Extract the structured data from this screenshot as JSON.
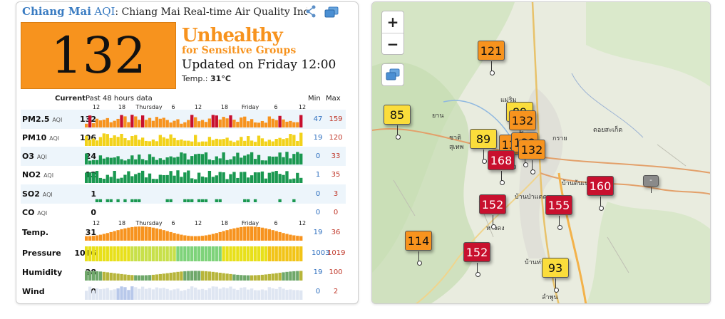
{
  "header": {
    "city": "Chiang Mai",
    "aqi_label": "AQI",
    "title_rest": ": Chiang Mai Real-time Air Quality Index (AQ"
  },
  "current": {
    "aqi": "132",
    "status_line1": "Unhealthy",
    "status_line2": "for Sensitive Groups",
    "updated": "Updated on Friday 12:00",
    "temp_label": "Temp.:",
    "temp_value": "31",
    "temp_unit": "°C"
  },
  "table": {
    "current_label": "Current",
    "history_label": "Past 48 hours data",
    "min_label": "Min",
    "max_label": "Max",
    "time_labels": [
      "12",
      "18",
      "Thursday",
      "6",
      "12",
      "18",
      "Friday",
      "6",
      "12"
    ],
    "rows": [
      {
        "name": "PM2.5",
        "unit": "AQI",
        "current": "132",
        "min": "47",
        "max": "159",
        "color": "#f7931e"
      },
      {
        "name": "PM10",
        "unit": "AQI",
        "current": "106",
        "min": "19",
        "max": "120",
        "color": "#f2d21a"
      },
      {
        "name": "O3",
        "unit": "AQI",
        "current": "24",
        "min": "0",
        "max": "33",
        "color": "#1a9850"
      },
      {
        "name": "NO2",
        "unit": "AQI",
        "current": "12",
        "min": "1",
        "max": "35",
        "color": "#1a9850"
      },
      {
        "name": "SO2",
        "unit": "AQI",
        "current": "1",
        "min": "0",
        "max": "3",
        "color": "#1a9850"
      },
      {
        "name": "CO",
        "unit": "AQI",
        "current": "0",
        "min": "0",
        "max": "0",
        "color": "#1a9850"
      },
      {
        "name": "Temp.",
        "unit": "",
        "current": "31",
        "min": "19",
        "max": "36",
        "color": "#f7931e"
      },
      {
        "name": "Pressure",
        "unit": "",
        "current": "1016",
        "min": "1003",
        "max": "1019",
        "color": "#e8e01a"
      },
      {
        "name": "Humidity",
        "unit": "",
        "current": "28",
        "min": "19",
        "max": "100",
        "color": "#9aaa3a"
      },
      {
        "name": "Wind",
        "unit": "",
        "current": "0",
        "min": "0",
        "max": "2",
        "color": "#c9d6ee"
      }
    ]
  },
  "map": {
    "zoom_in": "+",
    "zoom_out": "−",
    "markers": [
      {
        "value": "121",
        "level": "orange"
      },
      {
        "value": "85",
        "level": "yellow"
      },
      {
        "value": "89",
        "level": "yellow"
      },
      {
        "value": "132",
        "level": "orange"
      },
      {
        "value": "132",
        "level": "orange"
      },
      {
        "value": "168",
        "level": "red"
      },
      {
        "value": "160",
        "level": "red"
      },
      {
        "value": "152",
        "level": "red"
      },
      {
        "value": "155",
        "level": "red"
      },
      {
        "value": "114",
        "level": "orange"
      },
      {
        "value": "152",
        "level": "red"
      },
      {
        "value": "93",
        "level": "yellow"
      },
      {
        "value": "-",
        "level": "grey"
      }
    ],
    "labels": [
      "ดอยสะเก็ด",
      "บ้านต้นเปา",
      "บ้านป่าแดด",
      "หางดง",
      "บ้านท่ากว้าง",
      "ลำพูน",
      "แม่ริม",
      "ยาน",
      "กราย",
      "ชาติ",
      "สุเทพ"
    ]
  },
  "colors": {
    "good": "#1a9850",
    "moderate": "#fbdd3b",
    "sensitive": "#f7931e",
    "unhealthy": "#c8102e",
    "link": "#3a7cc2"
  }
}
